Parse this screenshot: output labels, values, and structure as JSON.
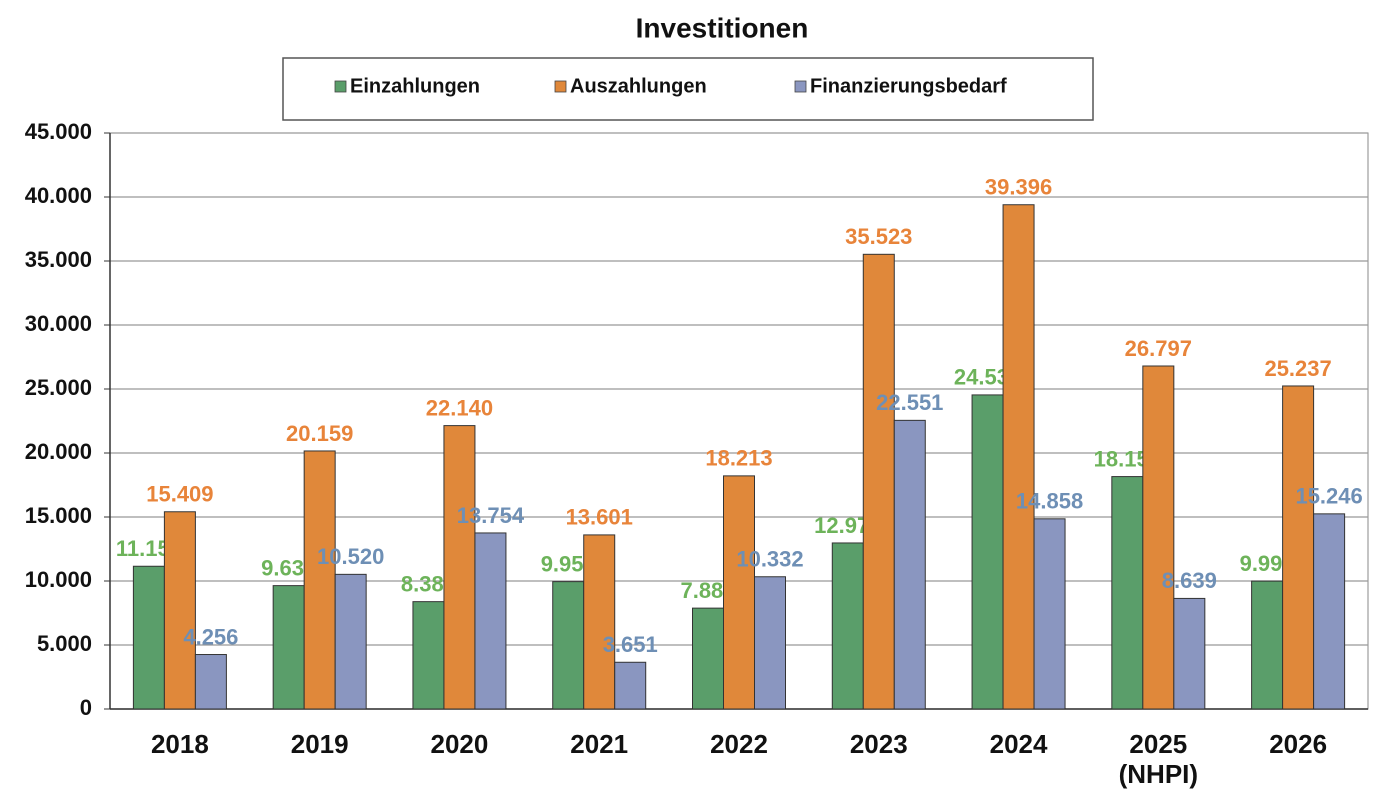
{
  "chart_data": {
    "type": "bar",
    "title": "Investitionen",
    "categories": [
      "2018",
      "2019",
      "2020",
      "2021",
      "2022",
      "2023",
      "2024",
      "2025\n(NHPI)",
      "2026"
    ],
    "series": [
      {
        "name": "Einzahlungen",
        "color": "#5a9e6a",
        "label_color": "#6db35a",
        "values": [
          11152,
          9639,
          8387,
          9950,
          7881,
          12972,
          24538,
          18158,
          9991
        ],
        "value_labels": [
          "11.152",
          "9.639",
          "8.387",
          "9.950",
          "7.881",
          "12.972",
          "24.538",
          "18.158",
          "9.991"
        ]
      },
      {
        "name": "Auszahlungen",
        "color": "#e0883a",
        "label_color": "#e8843a",
        "values": [
          15409,
          20159,
          22140,
          13601,
          18213,
          35523,
          39396,
          26797,
          25237
        ],
        "value_labels": [
          "15.409",
          "20.159",
          "22.140",
          "13.601",
          "18.213",
          "35.523",
          "39.396",
          "26.797",
          "25.237"
        ]
      },
      {
        "name": "Finanzierungsbedarf",
        "color": "#8a96c0",
        "label_color": "#6e8fb5",
        "values": [
          4256,
          10520,
          13754,
          3651,
          10332,
          22551,
          14858,
          8639,
          15246
        ],
        "value_labels": [
          "4.256",
          "10.520",
          "13.754",
          "3.651",
          "10.332",
          "22.551",
          "14.858",
          "8.639",
          "15.246"
        ]
      }
    ],
    "ylim": [
      0,
      45000
    ],
    "yticks": [
      0,
      {
        "value": 5000,
        "label": "5.000"
      },
      {
        "value": 10000,
        "label": "10.000"
      },
      {
        "value": 15000,
        "label": "15.000"
      },
      {
        "value": 20000,
        "label": "20.000"
      },
      {
        "value": 25000,
        "label": "25.000"
      },
      {
        "value": 30000,
        "label": "30.000"
      },
      {
        "value": 35000,
        "label": "35.000"
      },
      {
        "value": 40000,
        "label": "40.000"
      },
      {
        "value": 45000,
        "label": "45.000"
      }
    ],
    "grid": true,
    "legend": "top"
  }
}
